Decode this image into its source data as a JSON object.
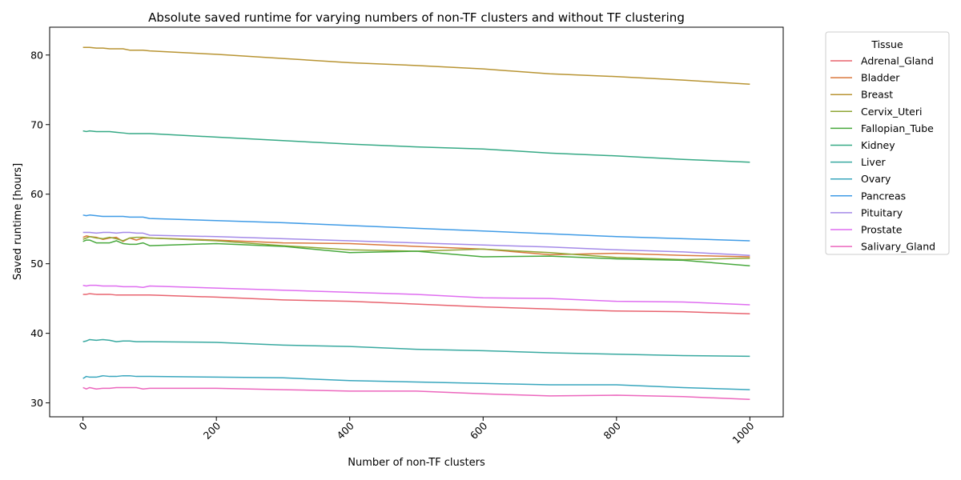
{
  "chart_data": {
    "type": "line",
    "title": "Absolute saved runtime for varying numbers of non-TF clusters and without TF clustering",
    "xlabel": "Number of non-TF clusters",
    "ylabel": "Saved runtime [hours]",
    "xlim": [
      -50,
      1050
    ],
    "ylim": [
      28,
      84
    ],
    "xticks": [
      0,
      200,
      400,
      600,
      800,
      1000
    ],
    "yticks": [
      30,
      40,
      50,
      60,
      70,
      80
    ],
    "grid": false,
    "legend": {
      "title": "Tissue",
      "placement": "outside-top-right"
    },
    "series": [
      {
        "name": "Adrenal_Gland",
        "color": "#e8636f",
        "x": [
          0,
          5,
          10,
          20,
          30,
          40,
          50,
          60,
          70,
          80,
          90,
          100,
          200,
          300,
          400,
          500,
          600,
          700,
          800,
          900,
          1000
        ],
        "y": [
          45.6,
          45.6,
          45.7,
          45.6,
          45.6,
          45.6,
          45.5,
          45.5,
          45.5,
          45.5,
          45.5,
          45.5,
          45.2,
          44.8,
          44.6,
          44.2,
          43.8,
          43.5,
          43.2,
          43.1,
          42.8
        ]
      },
      {
        "name": "Bladder",
        "color": "#d9783c",
        "x": [
          0,
          5,
          10,
          20,
          30,
          40,
          50,
          60,
          70,
          80,
          90,
          100,
          200,
          300,
          400,
          500,
          600,
          700,
          800,
          900,
          1000
        ],
        "y": [
          53.8,
          54.0,
          53.9,
          53.8,
          53.5,
          53.7,
          53.8,
          53.2,
          53.7,
          53.4,
          53.7,
          53.7,
          53.4,
          53.0,
          52.9,
          52.5,
          52.1,
          51.3,
          51.5,
          51.2,
          51.0
        ]
      },
      {
        "name": "Breast",
        "color": "#b89433",
        "x": [
          0,
          5,
          10,
          20,
          30,
          40,
          50,
          60,
          70,
          80,
          90,
          100,
          200,
          300,
          400,
          500,
          600,
          700,
          800,
          900,
          1000
        ],
        "y": [
          81.1,
          81.1,
          81.1,
          81.0,
          81.0,
          80.9,
          80.9,
          80.9,
          80.7,
          80.7,
          80.7,
          80.6,
          80.1,
          79.5,
          78.9,
          78.5,
          78.0,
          77.3,
          76.9,
          76.4,
          75.8
        ]
      },
      {
        "name": "Cervix_Uteri",
        "color": "#8fa635",
        "x": [
          0,
          5,
          10,
          20,
          30,
          40,
          50,
          60,
          70,
          80,
          90,
          100,
          200,
          300,
          400,
          500,
          600,
          700,
          800,
          900,
          1000
        ],
        "y": [
          53.5,
          53.7,
          53.9,
          53.7,
          53.6,
          53.8,
          53.6,
          53.3,
          53.7,
          53.8,
          53.8,
          53.7,
          53.3,
          52.6,
          52.0,
          51.8,
          52.1,
          51.6,
          50.9,
          50.6,
          50.8
        ]
      },
      {
        "name": "Fallopian_Tube",
        "color": "#47a83c",
        "x": [
          0,
          5,
          10,
          20,
          30,
          40,
          50,
          60,
          70,
          80,
          90,
          100,
          200,
          300,
          400,
          500,
          600,
          700,
          800,
          900,
          1000
        ],
        "y": [
          53.2,
          53.4,
          53.4,
          53.0,
          53.0,
          53.0,
          53.3,
          52.9,
          52.8,
          52.8,
          53.0,
          52.6,
          52.9,
          52.5,
          51.6,
          51.8,
          51.0,
          51.1,
          50.7,
          50.5,
          49.7
        ]
      },
      {
        "name": "Kidney",
        "color": "#35a985",
        "x": [
          0,
          5,
          10,
          20,
          30,
          40,
          50,
          60,
          70,
          80,
          90,
          100,
          200,
          300,
          400,
          500,
          600,
          700,
          800,
          900,
          1000
        ],
        "y": [
          69.1,
          69.0,
          69.1,
          69.0,
          69.0,
          69.0,
          68.9,
          68.8,
          68.7,
          68.7,
          68.7,
          68.7,
          68.2,
          67.7,
          67.2,
          66.8,
          66.5,
          65.9,
          65.5,
          65.0,
          64.6
        ]
      },
      {
        "name": "Liver",
        "color": "#38a9a0",
        "x": [
          0,
          5,
          10,
          20,
          30,
          40,
          50,
          60,
          70,
          80,
          90,
          100,
          200,
          300,
          400,
          500,
          600,
          700,
          800,
          900,
          1000
        ],
        "y": [
          38.8,
          38.9,
          39.1,
          39.0,
          39.1,
          39.0,
          38.8,
          38.9,
          38.9,
          38.8,
          38.8,
          38.8,
          38.7,
          38.3,
          38.1,
          37.7,
          37.5,
          37.2,
          37.0,
          36.8,
          36.7
        ]
      },
      {
        "name": "Ovary",
        "color": "#38a6bd",
        "x": [
          0,
          5,
          10,
          20,
          30,
          40,
          50,
          60,
          70,
          80,
          90,
          100,
          200,
          300,
          400,
          500,
          600,
          700,
          800,
          900,
          1000
        ],
        "y": [
          33.5,
          33.8,
          33.7,
          33.7,
          33.9,
          33.8,
          33.8,
          33.9,
          33.9,
          33.8,
          33.8,
          33.8,
          33.7,
          33.6,
          33.2,
          33.0,
          32.8,
          32.6,
          32.6,
          32.2,
          31.9
        ]
      },
      {
        "name": "Pancreas",
        "color": "#3f9be6",
        "x": [
          0,
          5,
          10,
          20,
          30,
          40,
          50,
          60,
          70,
          80,
          90,
          100,
          200,
          300,
          400,
          500,
          600,
          700,
          800,
          900,
          1000
        ],
        "y": [
          57.0,
          56.9,
          57.0,
          56.9,
          56.8,
          56.8,
          56.8,
          56.8,
          56.7,
          56.7,
          56.7,
          56.5,
          56.2,
          55.9,
          55.5,
          55.1,
          54.7,
          54.3,
          53.9,
          53.6,
          53.3
        ]
      },
      {
        "name": "Pituitary",
        "color": "#a48ae8",
        "x": [
          0,
          5,
          10,
          20,
          30,
          40,
          50,
          60,
          70,
          80,
          90,
          100,
          200,
          300,
          400,
          500,
          600,
          700,
          800,
          900,
          1000
        ],
        "y": [
          54.5,
          54.5,
          54.5,
          54.4,
          54.5,
          54.5,
          54.4,
          54.5,
          54.5,
          54.4,
          54.4,
          54.1,
          53.9,
          53.6,
          53.3,
          53.0,
          52.7,
          52.4,
          52.0,
          51.7,
          51.2
        ]
      },
      {
        "name": "Prostate",
        "color": "#df6df0",
        "x": [
          0,
          5,
          10,
          20,
          30,
          40,
          50,
          60,
          70,
          80,
          90,
          100,
          200,
          300,
          400,
          500,
          600,
          700,
          800,
          900,
          1000
        ],
        "y": [
          46.9,
          46.8,
          46.9,
          46.9,
          46.8,
          46.8,
          46.8,
          46.7,
          46.7,
          46.7,
          46.6,
          46.8,
          46.5,
          46.2,
          45.9,
          45.6,
          45.1,
          45.0,
          44.6,
          44.5,
          44.1
        ]
      },
      {
        "name": "Salivary_Gland",
        "color": "#ec66bd",
        "x": [
          0,
          5,
          10,
          20,
          30,
          40,
          50,
          60,
          70,
          80,
          90,
          100,
          200,
          300,
          400,
          500,
          600,
          700,
          800,
          900,
          1000
        ],
        "y": [
          32.2,
          32.0,
          32.2,
          32.0,
          32.1,
          32.1,
          32.2,
          32.2,
          32.2,
          32.2,
          32.0,
          32.1,
          32.1,
          31.9,
          31.7,
          31.7,
          31.3,
          31.0,
          31.1,
          30.9,
          30.5
        ]
      }
    ]
  }
}
